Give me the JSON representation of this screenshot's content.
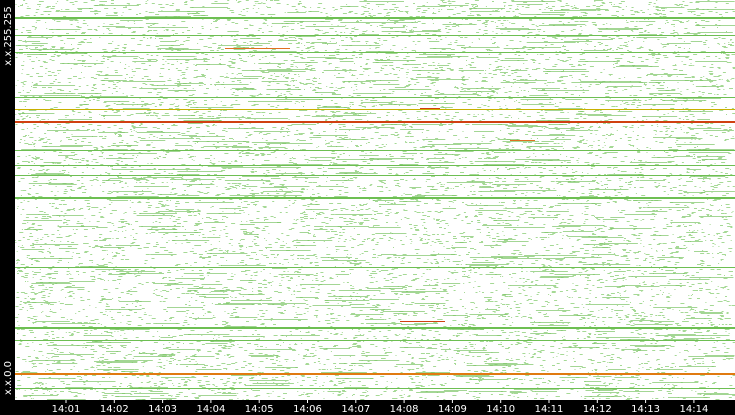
{
  "y_axis": {
    "labels": [
      "x.x.255.255",
      "x.x.0.0"
    ]
  },
  "x_axis": {
    "labels": [
      "14:01",
      "14:02",
      "14:03",
      "14:04",
      "14:05",
      "14:06",
      "14:07",
      "14:08",
      "14:09",
      "14:10",
      "14:11",
      "14:12",
      "14:13",
      "14:14"
    ]
  }
}
